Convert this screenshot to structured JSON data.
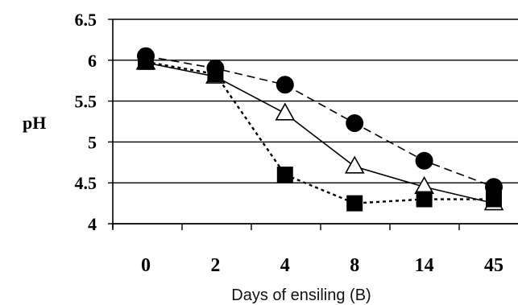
{
  "chart_data": {
    "type": "line",
    "title": "",
    "xlabel": "Days of ensiling (B)",
    "ylabel": "pH",
    "categories": [
      "0",
      "2",
      "4",
      "8",
      "14",
      "45"
    ],
    "ylim": [
      4,
      6.5
    ],
    "yticks": [
      "6.5",
      "6",
      "5.5",
      "5",
      "4.5",
      "4"
    ],
    "grid": true,
    "legend": "none",
    "series": [
      {
        "marker": "circle",
        "line": "dashed",
        "color": "#000000",
        "x": [
          0.0,
          1.0,
          2.0,
          3.0,
          4.0,
          5.0
        ],
        "values": [
          6.05,
          5.9,
          5.7,
          5.23,
          4.77,
          4.45
        ]
      },
      {
        "marker": "triangle",
        "line": "solid",
        "color": "#000000",
        "x": [
          0.0,
          1.0,
          2.0,
          3.0,
          4.0,
          5.0
        ],
        "values": [
          5.97,
          5.8,
          5.35,
          4.7,
          4.45,
          4.25
        ]
      },
      {
        "marker": "square",
        "line": "dotted",
        "color": "#000000",
        "x": [
          0.0,
          1.0,
          2.0,
          3.0,
          4.0,
          5.0
        ],
        "values": [
          5.98,
          5.83,
          4.6,
          4.25,
          4.3,
          4.3
        ]
      }
    ]
  }
}
